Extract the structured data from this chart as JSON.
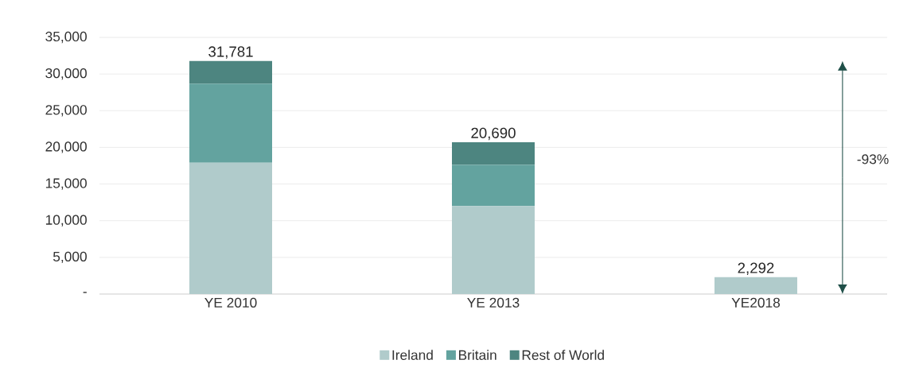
{
  "chart_data": {
    "type": "bar",
    "stacked": true,
    "categories": [
      "YE 2010",
      "YE 2013",
      "YE2018"
    ],
    "series": [
      {
        "name": "Ireland",
        "color": "#b0cbcb",
        "values": [
          17900,
          12000,
          2292
        ]
      },
      {
        "name": "Britain",
        "color": "#63a39f",
        "values": [
          10800,
          5600,
          0
        ]
      },
      {
        "name": "Rest of World",
        "color": "#4d8580",
        "values": [
          3081,
          3090,
          0
        ]
      }
    ],
    "totals": [
      "31,781",
      "20,690",
      "2,292"
    ],
    "ylim": [
      0,
      35000
    ],
    "yticks": [
      {
        "value": 0,
        "label": "-"
      },
      {
        "value": 5000,
        "label": "5,000"
      },
      {
        "value": 10000,
        "label": "10,000"
      },
      {
        "value": 15000,
        "label": "15,000"
      },
      {
        "value": 20000,
        "label": "20,000"
      },
      {
        "value": 25000,
        "label": "25,000"
      },
      {
        "value": 30000,
        "label": "30,000"
      },
      {
        "value": 35000,
        "label": "35,000"
      }
    ],
    "grid": "y",
    "legend": "bottom",
    "annotations": [
      "-93%"
    ]
  }
}
